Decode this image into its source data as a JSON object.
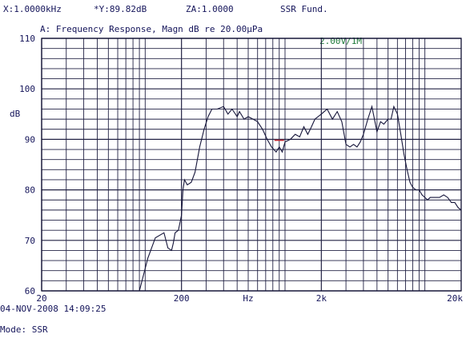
{
  "header": {
    "x_cursor": "X:1.0000kHz",
    "y_cursor": "*Y:89.82dB",
    "za": "ZA:1.0000",
    "mode_title": "SSR Fund.",
    "chart_title": "A: Frequency Response, Magn dB re 20.00µPa",
    "scale_box": "2.00V/1M"
  },
  "footer": {
    "timestamp": "04-NOV-2008 14:09:25",
    "mode": "Mode: SSR"
  },
  "chart_data": {
    "type": "line",
    "title": "A: Frequency Response, Magn dB re 20.00µPa",
    "xlabel": "Hz",
    "ylabel": "dB",
    "x_scale": "log",
    "xlim": [
      20,
      20000
    ],
    "ylim": [
      60,
      110
    ],
    "x_tick_labels": [
      {
        "value": 20,
        "label": "20"
      },
      {
        "value": 200,
        "label": "200"
      },
      {
        "value": 600,
        "label": "Hz"
      },
      {
        "value": 2000,
        "label": "2k"
      },
      {
        "value": 20000,
        "label": "20k"
      }
    ],
    "y_tick_labels": [
      {
        "value": 60,
        "label": "60"
      },
      {
        "value": 70,
        "label": "70"
      },
      {
        "value": 80,
        "label": "80"
      },
      {
        "value": 90,
        "label": "90"
      },
      {
        "value": 100,
        "label": "100"
      },
      {
        "value": 110,
        "label": "110"
      }
    ],
    "grid": true,
    "cursor": {
      "x": 1000,
      "y": 89.82
    },
    "series": [
      {
        "x": [
          100,
          115,
          130,
          150,
          160,
          170,
          175,
          180,
          190,
          200,
          205,
          210,
          215,
          220,
          235,
          250,
          270,
          290,
          310,
          330,
          360,
          400,
          430,
          460,
          500,
          520,
          560,
          600,
          650,
          700,
          760,
          820,
          880,
          950,
          1000,
          1050,
          1100,
          1200,
          1300,
          1400,
          1500,
          1600,
          1700,
          1800,
          2000,
          2200,
          2400,
          2600,
          2800,
          3000,
          3200,
          3400,
          3600,
          3800,
          4000,
          4300,
          4600,
          5000,
          5300,
          5600,
          6000,
          6300,
          6600,
          7000,
          7400,
          7800,
          8200,
          8600,
          9000,
          9500,
          10000,
          10500,
          11000,
          11500,
          12000,
          13000,
          14000,
          15000,
          16000,
          17000,
          18000,
          19000,
          20000
        ],
        "y": [
          60,
          66.5,
          70.5,
          71.5,
          68.5,
          68,
          69.5,
          71.5,
          72,
          75,
          80,
          82,
          81.5,
          81,
          81.5,
          83.5,
          88.5,
          92,
          94.5,
          96,
          96,
          96.5,
          95,
          96,
          94.5,
          95.5,
          94,
          94.5,
          94,
          93.5,
          92,
          90,
          88.5,
          87.5,
          88.5,
          87.5,
          89.5,
          90,
          91,
          90.5,
          92.5,
          91,
          92.5,
          94,
          95,
          96,
          94,
          95.5,
          93.5,
          89,
          88.5,
          89,
          88.5,
          89.5,
          91,
          94,
          96.5,
          91.5,
          93.5,
          93,
          94,
          94,
          96.5,
          95,
          91,
          87,
          84,
          81.5,
          80.5,
          80,
          80,
          79,
          78.5,
          78,
          78.5,
          78.5,
          78.5,
          79,
          78.5,
          77.5,
          77.5,
          76.5,
          76
        ]
      }
    ]
  }
}
